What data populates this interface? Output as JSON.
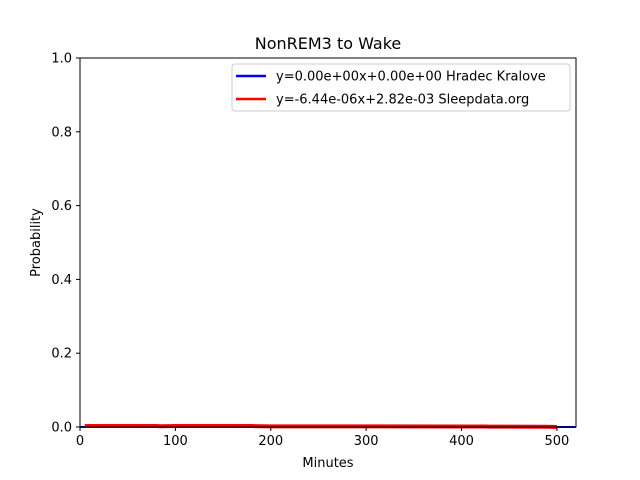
{
  "chart_data": {
    "type": "line",
    "title": "NonREM3 to Wake",
    "xlabel": "Minutes",
    "ylabel": "Probability",
    "xlim": [
      0,
      520
    ],
    "ylim": [
      0,
      1.0
    ],
    "xticks": [
      0,
      100,
      200,
      300,
      400,
      500
    ],
    "yticks": [
      0.0,
      0.2,
      0.4,
      0.6,
      0.8,
      1.0
    ],
    "xtick_labels": [
      "0",
      "100",
      "200",
      "300",
      "400",
      "500"
    ],
    "ytick_labels": [
      "0.0",
      "0.2",
      "0.4",
      "0.6",
      "0.8",
      "1.0"
    ],
    "grid": false,
    "legend_position": "top-right",
    "series": [
      {
        "name": "y=0.00e+00x+0.00e+00 Hradec Kralove",
        "color": "#0000ff",
        "x": [
          0,
          520
        ],
        "y": [
          0,
          0
        ]
      },
      {
        "name": "y=-6.44e-06x+2.82e-03 Sleepdata.org",
        "color": "#ff0000",
        "x": [
          5,
          80,
          85,
          100,
          180,
          200,
          300,
          400,
          425,
          430,
          490,
          495,
          500
        ],
        "y": [
          0.0028,
          0.0028,
          0.0022,
          0.0028,
          0.0026,
          0.0018,
          0.0017,
          0.0015,
          0.0013,
          0.001,
          0.0008,
          0.0004,
          0.0
        ]
      }
    ]
  }
}
